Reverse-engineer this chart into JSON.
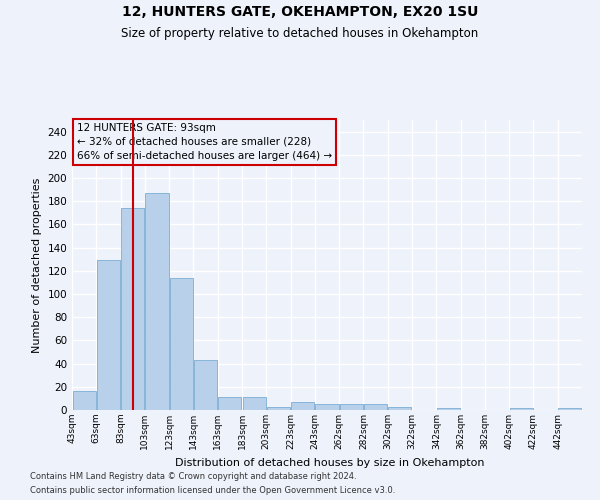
{
  "title1": "12, HUNTERS GATE, OKEHAMPTON, EX20 1SU",
  "title2": "Size of property relative to detached houses in Okehampton",
  "xlabel": "Distribution of detached houses by size in Okehampton",
  "ylabel": "Number of detached properties",
  "footnote1": "Contains HM Land Registry data © Crown copyright and database right 2024.",
  "footnote2": "Contains public sector information licensed under the Open Government Licence v3.0.",
  "annotation_line1": "12 HUNTERS GATE: 93sqm",
  "annotation_line2": "← 32% of detached houses are smaller (228)",
  "annotation_line3": "66% of semi-detached houses are larger (464) →",
  "bar_color": "#b8d0ea",
  "bar_edge_color": "#7aadd4",
  "line_color": "#cc0000",
  "box_edge_color": "#cc0000",
  "background_color": "#eef2fb",
  "grid_color": "#ffffff",
  "categories": [
    "43sqm",
    "63sqm",
    "83sqm",
    "103sqm",
    "123sqm",
    "143sqm",
    "163sqm",
    "183sqm",
    "203sqm",
    "223sqm",
    "243sqm",
    "262sqm",
    "282sqm",
    "302sqm",
    "322sqm",
    "342sqm",
    "362sqm",
    "382sqm",
    "402sqm",
    "422sqm",
    "442sqm"
  ],
  "values": [
    16,
    129,
    174,
    187,
    114,
    43,
    11,
    11,
    3,
    7,
    5,
    5,
    5,
    3,
    0,
    2,
    0,
    0,
    2,
    0,
    2
  ],
  "ylim": [
    0,
    250
  ],
  "yticks": [
    0,
    20,
    40,
    60,
    80,
    100,
    120,
    140,
    160,
    180,
    200,
    220,
    240
  ],
  "property_sqm": 93,
  "red_line_x": 93
}
